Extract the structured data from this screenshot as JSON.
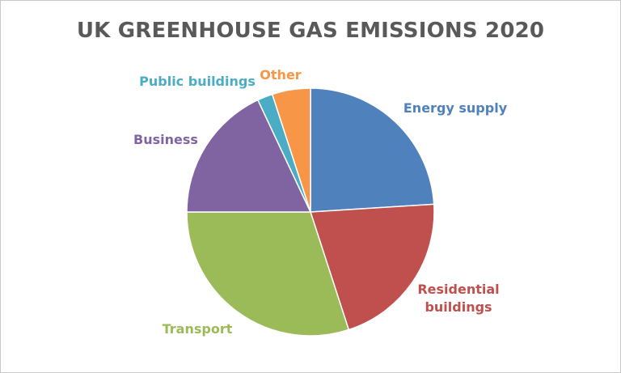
{
  "chart_data": {
    "type": "pie",
    "title": "UK GREENHOUSE GAS EMISSIONS 2020",
    "series": [
      {
        "values": [
          {
            "label": "Energy supply",
            "value": 24,
            "color": "#4f81bd"
          },
          {
            "label": "Residential buildings",
            "value": 21,
            "color": "#c0504d"
          },
          {
            "label": "Transport",
            "value": 30,
            "color": "#9bbb59"
          },
          {
            "label": "Business",
            "value": 18,
            "color": "#8064a2"
          },
          {
            "label": "Public buildings",
            "value": 2,
            "color": "#4bacc6"
          },
          {
            "label": "Other",
            "value": 5,
            "color": "#f79646"
          }
        ]
      }
    ],
    "legend": "none",
    "data_labels": "category names outside slices, colored to match slice"
  }
}
